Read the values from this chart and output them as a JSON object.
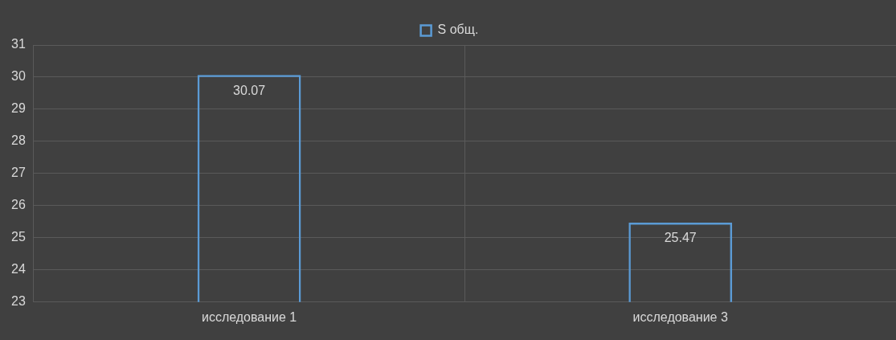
{
  "chart_data": {
    "type": "bar",
    "categories": [
      "исследование 1",
      "исследование 3"
    ],
    "series": [
      {
        "name": "S общ.",
        "color": "#5b9bd5",
        "values": [
          30.07,
          25.47
        ]
      }
    ],
    "ylim": [
      23,
      31
    ],
    "yticks": [
      23,
      24,
      25,
      26,
      27,
      28,
      29,
      30,
      31
    ],
    "grid": true,
    "legend": "top",
    "data_labels": true
  }
}
